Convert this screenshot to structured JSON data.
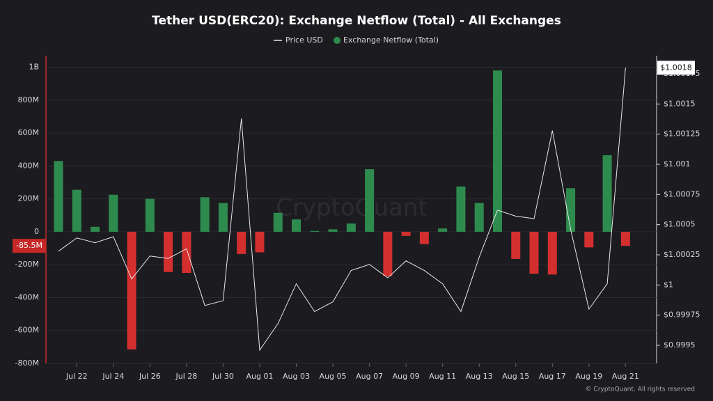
{
  "chart_data": {
    "type": "bar",
    "title": "Tether USD(ERC20): Exchange Netflow (Total) - All Exchanges",
    "watermark": "CryptoQuant",
    "footer": "© CryptoQuant. All rights reserved",
    "categories": [
      null,
      "Jul 22",
      null,
      "Jul 24",
      null,
      "Jul 26",
      null,
      "Jul 28",
      null,
      "Jul 30",
      null,
      "Aug 01",
      null,
      "Aug 03",
      null,
      "Aug 05",
      null,
      "Aug 07",
      null,
      "Aug 09",
      null,
      "Aug 11",
      null,
      "Aug 13",
      null,
      "Aug 15",
      null,
      "Aug 17",
      null,
      "Aug 19",
      null,
      "Aug 21"
    ],
    "series": [
      {
        "name": "Price USD",
        "type": "line",
        "color": "#e8e8e8",
        "axis": "y2",
        "last_label": "$1.0018",
        "values": [
          1.00028,
          1.00039,
          1.00035,
          1.0004,
          1.00005,
          1.00024,
          1.00022,
          1.0003,
          0.99983,
          0.99987,
          1.00138,
          0.99946,
          0.99968,
          1.00001,
          0.99978,
          0.99986,
          1.00012,
          1.00017,
          1.00006,
          1.0002,
          1.00012,
          1.00001,
          0.99978,
          1.00023,
          1.00062,
          1.00057,
          1.00055,
          1.00128,
          1.00046,
          0.9998,
          1.00001,
          1.0018
        ]
      },
      {
        "name": "Exchange Netflow (Total)",
        "type": "bar",
        "color": "#2e8b4e",
        "negative_color": "#d32f2f",
        "last_label": "-85.5M",
        "values": [
          430000000,
          255000000,
          30000000,
          225000000,
          -715000000,
          200000000,
          -245000000,
          -250000000,
          210000000,
          175000000,
          -135000000,
          -125000000,
          115000000,
          75000000,
          5000000,
          15000000,
          50000000,
          380000000,
          -270000000,
          -25000000,
          -75000000,
          20000000,
          275000000,
          175000000,
          980000000,
          -165000000,
          -255000000,
          -260000000,
          265000000,
          -95000000,
          465000000,
          -85500000
        ]
      }
    ],
    "ylim": [
      -800000000,
      1070000000
    ],
    "yticks": [
      {
        "value": -800000000,
        "label": "-800M"
      },
      {
        "value": -600000000,
        "label": "-600M"
      },
      {
        "value": -400000000,
        "label": "-400M"
      },
      {
        "value": -200000000,
        "label": "-200M"
      },
      0,
      {
        "value": 200000000,
        "label": "200M"
      },
      {
        "value": 400000000,
        "label": "400M"
      },
      {
        "value": 600000000,
        "label": "600M"
      },
      {
        "value": 800000000,
        "label": "800M"
      },
      {
        "value": 1000000000,
        "label": "1B"
      }
    ],
    "y2lim": [
      0.99935,
      1.0019
    ],
    "y2ticks": [
      {
        "value": 0.9995,
        "label": "$0.9995"
      },
      {
        "value": 0.99975,
        "label": "$0.99975"
      },
      {
        "value": 1,
        "label": "$1"
      },
      {
        "value": 1.00025,
        "label": "$1.00025"
      },
      {
        "value": 1.0005,
        "label": "$1.0005"
      },
      {
        "value": 1.00075,
        "label": "$1.00075"
      },
      {
        "value": 1.001,
        "label": "$1.001"
      },
      {
        "value": 1.00125,
        "label": "$1.00125"
      },
      {
        "value": 1.0015,
        "label": "$1.0015"
      },
      {
        "value": 1.00175,
        "label": "$1.00175"
      }
    ],
    "grid": true
  }
}
